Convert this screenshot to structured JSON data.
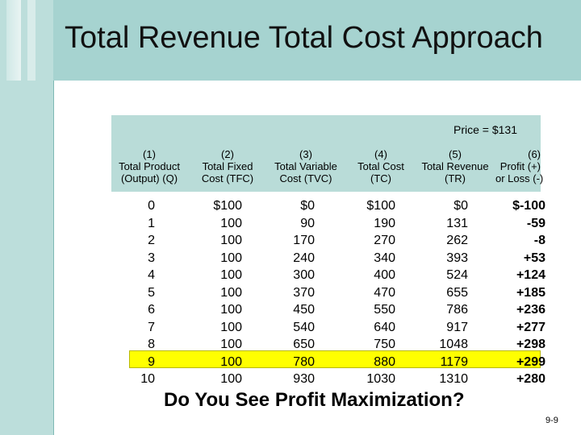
{
  "title": "Total Revenue Total Cost Approach",
  "price_label": "Price = $131",
  "columns": [
    {
      "num": "(1)",
      "line1": "Total Product",
      "line2": "(Output) (Q)"
    },
    {
      "num": "(2)",
      "line1": "Total Fixed",
      "line2": "Cost (TFC)"
    },
    {
      "num": "(3)",
      "line1": "Total Variable",
      "line2": "Cost (TVC)"
    },
    {
      "num": "(4)",
      "line1": "Total Cost",
      "line2": "(TC)"
    },
    {
      "num": "(5)",
      "line1": "Total Revenue",
      "line2": "(TR)"
    },
    {
      "num": "(6)",
      "line1": "Profit (+)",
      "line2": "or Loss (-)"
    }
  ],
  "rows": [
    [
      "0",
      "$100",
      "$0",
      "$100",
      "$0",
      "$-100"
    ],
    [
      "1",
      "100",
      "90",
      "190",
      "131",
      "-59"
    ],
    [
      "2",
      "100",
      "170",
      "270",
      "262",
      "-8"
    ],
    [
      "3",
      "100",
      "240",
      "340",
      "393",
      "+53"
    ],
    [
      "4",
      "100",
      "300",
      "400",
      "524",
      "+124"
    ],
    [
      "5",
      "100",
      "370",
      "470",
      "655",
      "+185"
    ],
    [
      "6",
      "100",
      "450",
      "550",
      "786",
      "+236"
    ],
    [
      "7",
      "100",
      "540",
      "640",
      "917",
      "+277"
    ],
    [
      "8",
      "100",
      "650",
      "750",
      "1048",
      "+298"
    ],
    [
      "9",
      "100",
      "780",
      "880",
      "1179",
      "+299"
    ],
    [
      "10",
      "100",
      "930",
      "1030",
      "1310",
      "+280"
    ]
  ],
  "highlighted_row_output": "9",
  "question": "Do You See Profit Maximization?",
  "slide_number": "9-9",
  "colors": {
    "title_band": "#a6d3d0",
    "header_box": "#b9dcd8",
    "highlight": "#ffff00"
  }
}
